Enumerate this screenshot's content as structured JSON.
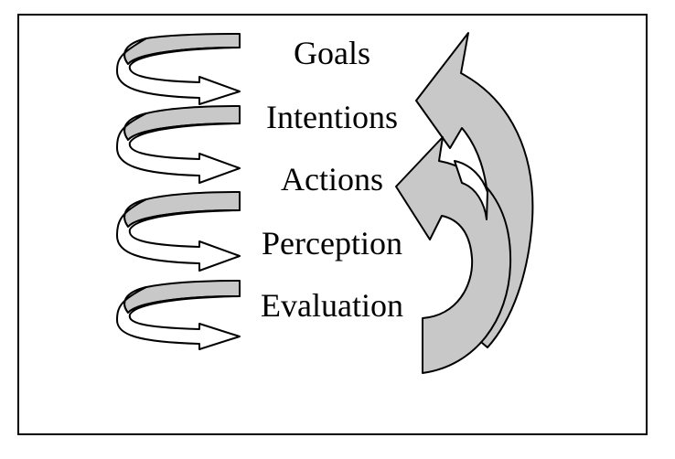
{
  "stages": [
    {
      "label": "Goals"
    },
    {
      "label": "Intentions"
    },
    {
      "label": "Actions"
    },
    {
      "label": "Perception"
    },
    {
      "label": "Evaluation"
    }
  ],
  "colors": {
    "arrow_fill": "#c8c8c8",
    "arrow_white": "#ffffff",
    "stroke": "#000000",
    "border": "#000000",
    "background": "#ffffff"
  }
}
